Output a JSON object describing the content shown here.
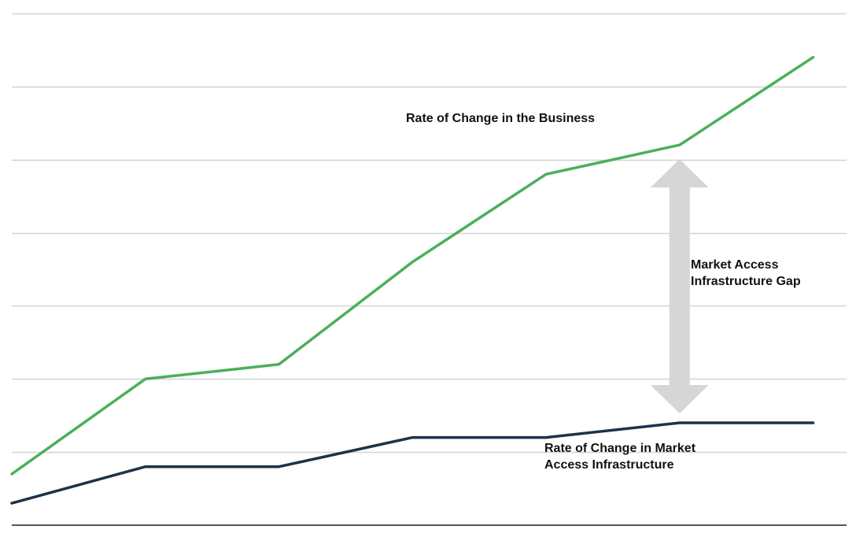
{
  "chart_data": {
    "type": "line",
    "title": "",
    "xlabel": "",
    "ylabel": "",
    "x": [
      0,
      1,
      2,
      3,
      4,
      5,
      6
    ],
    "xlim": [
      0,
      6.25
    ],
    "ylim": [
      0,
      7
    ],
    "grid": true,
    "series": [
      {
        "name": "Rate of Change in the Business",
        "values": [
          0.7,
          2.0,
          2.2,
          3.6,
          4.8,
          5.2,
          6.4
        ],
        "color": "#4caf5a"
      },
      {
        "name": "Rate of Change in Market Access Infrastructure",
        "values": [
          0.3,
          0.8,
          0.8,
          1.2,
          1.2,
          1.4,
          1.4
        ],
        "color": "#1c3349"
      }
    ],
    "annotations": [
      {
        "text": "Market Access Infrastructure Gap",
        "type": "double-arrow",
        "x": 5,
        "from_y": 1.4,
        "to_y": 5.2,
        "color": "#d6d6d6"
      }
    ]
  },
  "labels": {
    "business_line": [
      "Rate of Change in the Business"
    ],
    "infrastructure_line": [
      "Rate of Change in Market",
      "Access Infrastructure"
    ],
    "gap": [
      "Market Access",
      "Infrastructure Gap"
    ]
  },
  "colors": {
    "gridline": "#d3d3d3",
    "axis": "#555555",
    "label_text": "#111111"
  }
}
